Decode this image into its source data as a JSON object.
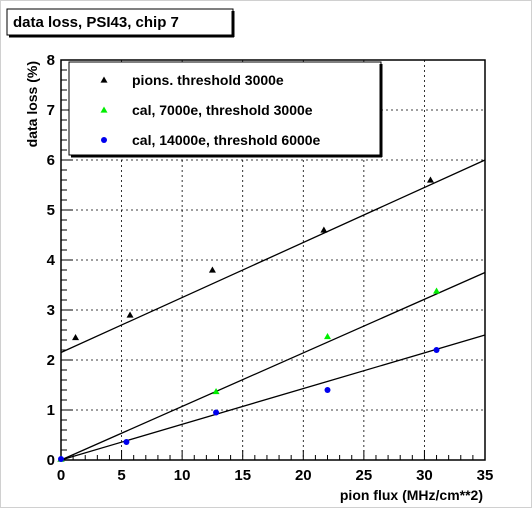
{
  "chart_data": {
    "type": "scatter",
    "title": "data loss, PSI43, chip 7",
    "xlabel": "pion flux (MHz/cm**2)",
    "ylabel": "data loss (%)",
    "xlim": [
      0,
      35
    ],
    "ylim": [
      0,
      8
    ],
    "x_ticks": [
      "0",
      "5",
      "10",
      "15",
      "20",
      "25",
      "30",
      "35"
    ],
    "y_ticks": [
      "0",
      "1",
      "2",
      "3",
      "4",
      "5",
      "6",
      "7",
      "8"
    ],
    "grid": true,
    "legend_position": "top-left",
    "series": [
      {
        "name": "pions. threshold 3000e",
        "marker": "triangle",
        "color": "#000000",
        "x": [
          0,
          1.2,
          5.7,
          12.5,
          21.7,
          30.5
        ],
        "y": [
          0.02,
          2.45,
          2.9,
          3.8,
          4.6,
          5.6
        ],
        "fit": [
          2.15,
          6.0
        ]
      },
      {
        "name": "cal, 7000e, threshold 3000e",
        "marker": "triangle",
        "color": "#00ee00",
        "x": [
          0,
          12.8,
          22,
          31
        ],
        "y": [
          0.02,
          1.37,
          2.47,
          3.38
        ],
        "fit": [
          0.0,
          3.75
        ]
      },
      {
        "name": "cal, 14000e, threshold 6000e",
        "marker": "circle",
        "color": "#0000ee",
        "x": [
          0,
          5.4,
          12.8,
          22,
          31
        ],
        "y": [
          0.02,
          0.36,
          0.95,
          1.4,
          2.2
        ],
        "fit": [
          0.0,
          2.5
        ]
      }
    ]
  }
}
